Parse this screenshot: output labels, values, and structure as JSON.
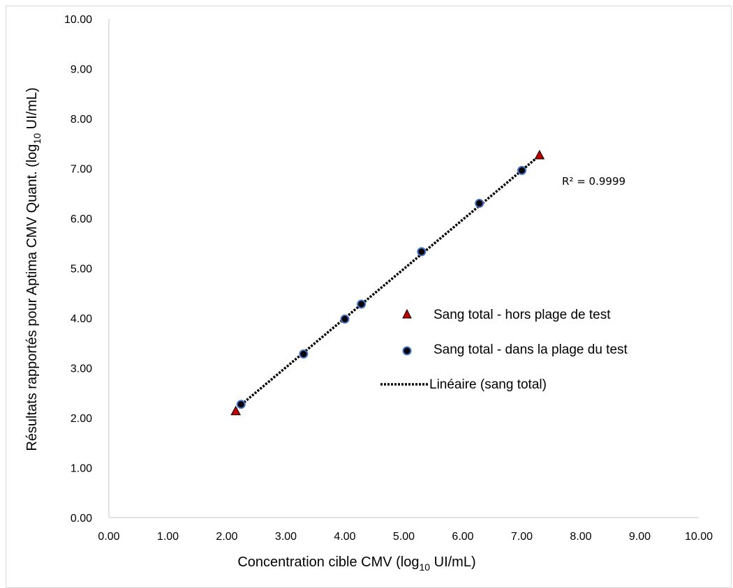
{
  "chart_data": {
    "type": "scatter",
    "xlabel": "Concentration cible CMV (log10 UI/mL)",
    "xlabel_parts": {
      "main": "Concentration cible CMV (log",
      "sub": "10",
      "end": " UI/mL)"
    },
    "ylabel": "Résultats rapportés pour Aptima CMV Quant. (log10 UI/mL)",
    "ylabel_parts": {
      "main": "Résultats rapportés pour Aptima CMV Quant. (log",
      "sub": "10",
      "end": " UI/mL)"
    },
    "xlim": [
      0,
      10
    ],
    "ylim": [
      0,
      10
    ],
    "x_ticks": [
      "0.00",
      "1.00",
      "2.00",
      "3.00",
      "4.00",
      "5.00",
      "6.00",
      "7.00",
      "8.00",
      "9.00",
      "10.00"
    ],
    "y_ticks": [
      "0.00",
      "1.00",
      "2.00",
      "3.00",
      "4.00",
      "5.00",
      "6.00",
      "7.00",
      "8.00",
      "9.00",
      "10.00"
    ],
    "grid": false,
    "legend_position": "right-middle",
    "series": [
      {
        "name": "Sang total - hors plage de test",
        "marker": "triangle",
        "color": "#c00000",
        "x": [
          2.15,
          7.3
        ],
        "y": [
          2.13,
          7.26
        ]
      },
      {
        "name": "Sang total - dans la plage du test",
        "marker": "circle",
        "color": "#4472c4",
        "x": [
          2.24,
          3.3,
          4.0,
          4.28,
          5.3,
          6.28,
          7.0
        ],
        "y": [
          2.27,
          3.28,
          3.98,
          4.28,
          5.33,
          6.3,
          6.96
        ]
      }
    ],
    "trendline": {
      "name": "Linéaire (sang total)",
      "style": "dotted",
      "x": [
        2.2,
        7.22
      ],
      "y": [
        2.22,
        7.18
      ]
    },
    "annotation": "R² = 0.9999"
  }
}
